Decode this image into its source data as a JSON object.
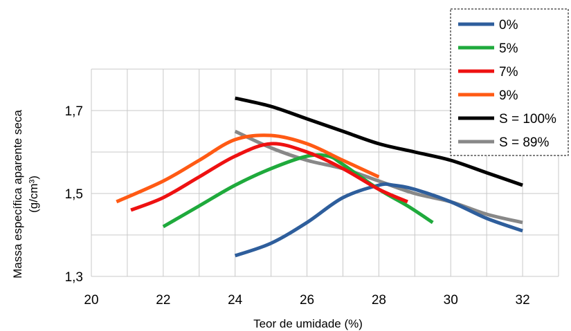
{
  "chart_data": {
    "type": "line",
    "title": "",
    "xlabel": "Teor de umidade (%)",
    "ylabel_lines": [
      "Massa específica aparente seca",
      "(g/cm³)"
    ],
    "xlim": [
      20,
      33
    ],
    "ylim": [
      1.3,
      1.8
    ],
    "xticks": [
      20,
      22,
      24,
      26,
      28,
      30,
      32
    ],
    "xtick_labels": [
      "20",
      "22",
      "24",
      "26",
      "28",
      "30",
      "32"
    ],
    "yticks": [
      1.3,
      1.5,
      1.7
    ],
    "ytick_labels": [
      "1,3",
      "1,5",
      "1,7"
    ],
    "grid": true,
    "legend_position": "top-right",
    "series": [
      {
        "name": "0%",
        "color": "#2e5e9c",
        "points": [
          [
            24.0,
            1.35
          ],
          [
            25.0,
            1.38
          ],
          [
            26.0,
            1.43
          ],
          [
            27.0,
            1.49
          ],
          [
            28.0,
            1.52
          ],
          [
            28.4,
            1.52
          ],
          [
            29.0,
            1.51
          ],
          [
            30.0,
            1.48
          ],
          [
            31.0,
            1.44
          ],
          [
            32.0,
            1.41
          ]
        ]
      },
      {
        "name": "5%",
        "color": "#1faa3c",
        "points": [
          [
            22.0,
            1.42
          ],
          [
            23.0,
            1.47
          ],
          [
            24.0,
            1.52
          ],
          [
            25.0,
            1.56
          ],
          [
            26.0,
            1.59
          ],
          [
            26.6,
            1.59
          ],
          [
            27.0,
            1.57
          ],
          [
            28.0,
            1.51
          ],
          [
            28.8,
            1.47
          ],
          [
            29.5,
            1.43
          ]
        ]
      },
      {
        "name": "7%",
        "color": "#ee1111",
        "points": [
          [
            21.1,
            1.46
          ],
          [
            22.0,
            1.49
          ],
          [
            23.0,
            1.54
          ],
          [
            24.0,
            1.59
          ],
          [
            25.0,
            1.62
          ],
          [
            26.0,
            1.6
          ],
          [
            27.0,
            1.56
          ],
          [
            28.0,
            1.51
          ],
          [
            28.8,
            1.48
          ]
        ]
      },
      {
        "name": "9%",
        "color": "#ff5a14",
        "points": [
          [
            20.7,
            1.48
          ],
          [
            22.0,
            1.53
          ],
          [
            23.0,
            1.58
          ],
          [
            24.0,
            1.63
          ],
          [
            25.0,
            1.64
          ],
          [
            26.0,
            1.62
          ],
          [
            27.0,
            1.58
          ],
          [
            28.0,
            1.54
          ]
        ]
      },
      {
        "name": "S = 100%",
        "color": "#000000",
        "points": [
          [
            24.0,
            1.73
          ],
          [
            25.0,
            1.71
          ],
          [
            26.0,
            1.68
          ],
          [
            27.0,
            1.65
          ],
          [
            28.0,
            1.62
          ],
          [
            29.0,
            1.6
          ],
          [
            30.0,
            1.58
          ],
          [
            31.0,
            1.55
          ],
          [
            32.0,
            1.52
          ]
        ]
      },
      {
        "name": "S = 89%",
        "color": "#888888",
        "points": [
          [
            24.0,
            1.65
          ],
          [
            25.0,
            1.61
          ],
          [
            26.0,
            1.58
          ],
          [
            27.0,
            1.56
          ],
          [
            28.0,
            1.53
          ],
          [
            29.0,
            1.5
          ],
          [
            30.0,
            1.48
          ],
          [
            31.0,
            1.45
          ],
          [
            32.0,
            1.43
          ]
        ]
      }
    ]
  }
}
